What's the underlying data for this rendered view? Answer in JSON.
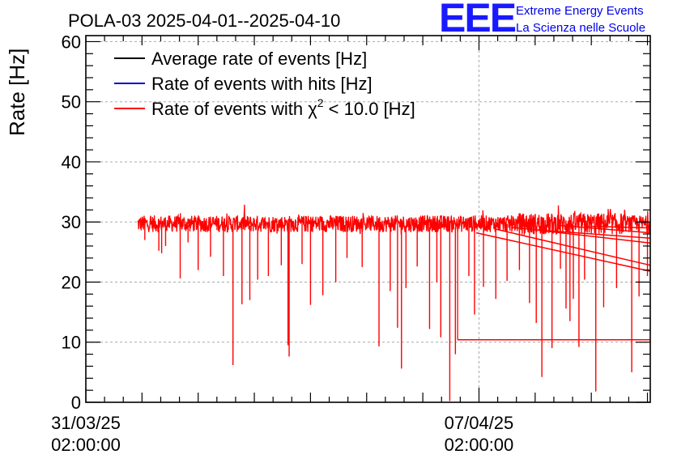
{
  "chart_data": {
    "type": "line",
    "title": "POLA-03 2025-04-01--2025-04-10",
    "ylabel": "Rate [Hz]",
    "xlabel": "",
    "ylim": [
      0,
      61
    ],
    "yticks": [
      0,
      10,
      20,
      30,
      40,
      50,
      60
    ],
    "x_range_days": [
      0,
      10.05
    ],
    "xticks": [
      {
        "day": 0,
        "line1": "31/03/25",
        "line2": "02:00:00"
      },
      {
        "day": 7,
        "line1": "07/04/25",
        "line2": "02:00:00"
      }
    ],
    "grid": true,
    "legend_position": "top-left",
    "series": [
      {
        "name": "Average rate of events [Hz]",
        "color": "#000000",
        "legend_prefix": "Average rate of events [Hz]",
        "legend_sup": "",
        "legend_suffix": ""
      },
      {
        "name": "Rate of events with hits [Hz]",
        "color": "#0000cc",
        "legend_prefix": "Rate of events with hits [Hz]",
        "legend_sup": "",
        "legend_suffix": ""
      },
      {
        "name": "Rate of events with χ2 < 10.0 [Hz]",
        "color": "#ff0000",
        "legend_prefix": "Rate of events with χ",
        "legend_sup": "2",
        "legend_suffix": " < 10.0 [Hz]"
      }
    ],
    "data_window_days": [
      0.92,
      10.05
    ],
    "baseline_rate": 29.7,
    "dips": [
      {
        "day": 1.05,
        "value": 27.0
      },
      {
        "day": 1.3,
        "value": 25.2
      },
      {
        "day": 1.35,
        "value": 24.8
      },
      {
        "day": 1.42,
        "value": 26.0
      },
      {
        "day": 1.68,
        "value": 20.6
      },
      {
        "day": 1.82,
        "value": 26.6
      },
      {
        "day": 2.0,
        "value": 22.0
      },
      {
        "day": 2.22,
        "value": 24.2
      },
      {
        "day": 2.45,
        "value": 21.0
      },
      {
        "day": 2.62,
        "value": 6.2
      },
      {
        "day": 2.78,
        "value": 16.3
      },
      {
        "day": 2.92,
        "value": 17.0
      },
      {
        "day": 3.06,
        "value": 20.4
      },
      {
        "day": 3.25,
        "value": 21.0
      },
      {
        "day": 3.48,
        "value": 22.8
      },
      {
        "day": 3.6,
        "value": 9.5
      },
      {
        "day": 3.62,
        "value": 7.6
      },
      {
        "day": 3.85,
        "value": 23.0
      },
      {
        "day": 4.0,
        "value": 16.2
      },
      {
        "day": 4.22,
        "value": 17.8
      },
      {
        "day": 4.45,
        "value": 20.0
      },
      {
        "day": 4.65,
        "value": 24.0
      },
      {
        "day": 4.92,
        "value": 22.5
      },
      {
        "day": 5.22,
        "value": 9.3
      },
      {
        "day": 5.42,
        "value": 18.5
      },
      {
        "day": 5.55,
        "value": 12.4
      },
      {
        "day": 5.62,
        "value": 5.6
      },
      {
        "day": 5.7,
        "value": 19.0
      },
      {
        "day": 5.9,
        "value": 22.6
      },
      {
        "day": 6.12,
        "value": 12.2
      },
      {
        "day": 6.25,
        "value": 20.0
      },
      {
        "day": 6.32,
        "value": 10.8
      },
      {
        "day": 6.48,
        "value": 0.2
      },
      {
        "day": 6.58,
        "value": 8.0
      },
      {
        "day": 6.82,
        "value": 21.0
      },
      {
        "day": 6.92,
        "value": 14.6
      },
      {
        "day": 7.08,
        "value": 19.2
      },
      {
        "day": 7.3,
        "value": 17.2
      },
      {
        "day": 7.5,
        "value": 20.2
      },
      {
        "day": 7.72,
        "value": 22.0
      },
      {
        "day": 7.9,
        "value": 16.5
      },
      {
        "day": 8.02,
        "value": 13.2
      },
      {
        "day": 8.12,
        "value": 4.2
      },
      {
        "day": 8.3,
        "value": 9.0
      },
      {
        "day": 8.45,
        "value": 22.2
      },
      {
        "day": 8.55,
        "value": 15.6
      },
      {
        "day": 8.62,
        "value": 13.5
      },
      {
        "day": 8.68,
        "value": 17.2
      },
      {
        "day": 8.78,
        "value": 9.2
      },
      {
        "day": 8.88,
        "value": 20.4
      },
      {
        "day": 9.08,
        "value": 1.8
      },
      {
        "day": 9.22,
        "value": 15.8
      },
      {
        "day": 9.45,
        "value": 19.0
      },
      {
        "day": 9.72,
        "value": 5.0
      },
      {
        "day": 9.85,
        "value": 17.6
      },
      {
        "day": 10.0,
        "value": 21.0
      }
    ],
    "gap_connectors": [
      {
        "from_day": 6.62,
        "from_value": 10.4,
        "to_day": 10.05,
        "to_value": 10.4
      },
      {
        "from_day": 6.95,
        "from_value": 28.2,
        "to_day": 10.05,
        "to_value": 21.8
      },
      {
        "from_day": 7.3,
        "from_value": 28.8,
        "to_day": 10.05,
        "to_value": 22.8
      },
      {
        "from_day": 7.6,
        "from_value": 29.1,
        "to_day": 10.05,
        "to_value": 26.5
      },
      {
        "from_day": 8.0,
        "from_value": 28.7,
        "to_day": 10.05,
        "to_value": 27.3
      },
      {
        "from_day": 8.45,
        "from_value": 29.4,
        "to_day": 10.05,
        "to_value": 28.2
      },
      {
        "from_day": 8.9,
        "from_value": 29.3,
        "to_day": 10.05,
        "to_value": 29.0
      }
    ]
  },
  "logo": {
    "letters": "EEE",
    "line1": "Extreme Energy Events",
    "line2": "La Scienza nelle Scuole"
  }
}
